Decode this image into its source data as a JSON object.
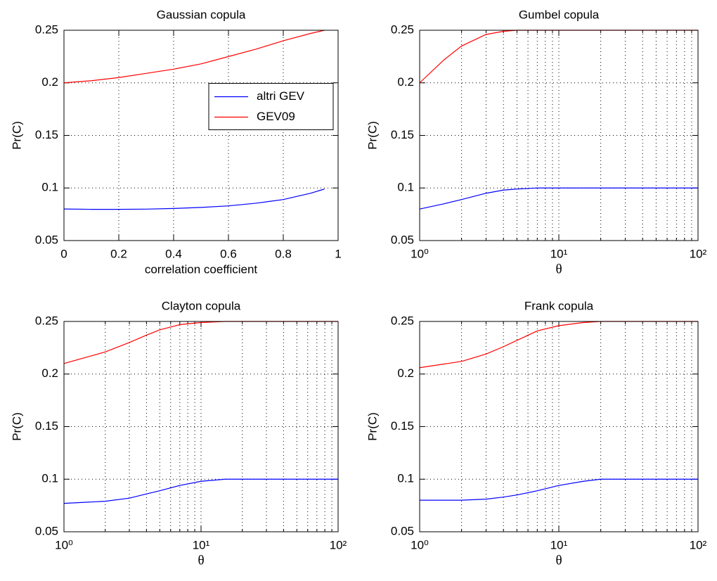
{
  "chart_data": [
    {
      "type": "line",
      "title": "Gaussian copula",
      "xlabel": "correlation coefficient",
      "ylabel": "Pr(C)",
      "x": [
        0,
        0.1,
        0.2,
        0.3,
        0.4,
        0.5,
        0.6,
        0.7,
        0.8,
        0.9,
        0.95
      ],
      "series": [
        {
          "name": "altri GEV",
          "color": "#0000ff",
          "values": [
            0.08,
            0.0797,
            0.0797,
            0.0799,
            0.0805,
            0.0815,
            0.083,
            0.0855,
            0.089,
            0.095,
            0.099
          ]
        },
        {
          "name": "GEV09",
          "color": "#ff0000",
          "values": [
            0.2,
            0.202,
            0.205,
            0.209,
            0.213,
            0.218,
            0.225,
            0.232,
            0.24,
            0.247,
            0.25
          ]
        }
      ],
      "xlim": [
        0,
        1
      ],
      "xticks": [
        0,
        0.2,
        0.4,
        0.6,
        0.8,
        1
      ],
      "ylim": [
        0.05,
        0.25
      ],
      "yticks": [
        0.05,
        0.1,
        0.15,
        0.2,
        0.25
      ],
      "grid": true,
      "legend": "center right"
    },
    {
      "type": "line",
      "title": "Gumbel copula",
      "xlabel": "θ",
      "ylabel": "Pr(C)",
      "xscale": "log",
      "x": [
        1,
        1.5,
        2,
        3,
        4,
        5,
        7,
        10,
        20,
        50,
        100
      ],
      "series": [
        {
          "color": "#0000ff",
          "values": [
            0.08,
            0.085,
            0.089,
            0.095,
            0.098,
            0.099,
            0.1,
            0.1,
            0.1,
            0.1,
            0.1
          ]
        },
        {
          "color": "#ff0000",
          "values": [
            0.2,
            0.222,
            0.235,
            0.246,
            0.249,
            0.25,
            0.25,
            0.25,
            0.25,
            0.25,
            0.25
          ]
        }
      ],
      "xlim": [
        1,
        100
      ],
      "xticks": [
        {
          "value": 1,
          "label": "10⁰"
        },
        {
          "value": 10,
          "label": "10¹"
        },
        {
          "value": 100,
          "label": "10²"
        }
      ],
      "ylim": [
        0.05,
        0.25
      ],
      "yticks": [
        0.05,
        0.1,
        0.15,
        0.2,
        0.25
      ],
      "grid": true,
      "minor_grid": true
    },
    {
      "type": "line",
      "title": "Clayton copula",
      "xlabel": "θ",
      "ylabel": "Pr(C)",
      "xscale": "log",
      "x": [
        1,
        2,
        3,
        4,
        5,
        7,
        10,
        15,
        20,
        50,
        100
      ],
      "series": [
        {
          "color": "#0000ff",
          "values": [
            0.077,
            0.079,
            0.082,
            0.086,
            0.089,
            0.094,
            0.098,
            0.1,
            0.1,
            0.1,
            0.1
          ]
        },
        {
          "color": "#ff0000",
          "values": [
            0.21,
            0.221,
            0.23,
            0.237,
            0.242,
            0.247,
            0.249,
            0.25,
            0.25,
            0.25,
            0.25
          ]
        }
      ],
      "xlim": [
        1,
        100
      ],
      "xticks": [
        {
          "value": 1,
          "label": "10⁰"
        },
        {
          "value": 10,
          "label": "10¹"
        },
        {
          "value": 100,
          "label": "10²"
        }
      ],
      "ylim": [
        0.05,
        0.25
      ],
      "yticks": [
        0.05,
        0.1,
        0.15,
        0.2,
        0.25
      ],
      "grid": true,
      "minor_grid": true
    },
    {
      "type": "line",
      "title": "Frank copula",
      "xlabel": "θ",
      "ylabel": "Pr(C)",
      "xscale": "log",
      "x": [
        1,
        2,
        3,
        4,
        5,
        7,
        10,
        15,
        20,
        50,
        100
      ],
      "series": [
        {
          "color": "#0000ff",
          "values": [
            0.08,
            0.08,
            0.081,
            0.083,
            0.085,
            0.089,
            0.094,
            0.098,
            0.1,
            0.1,
            0.1
          ]
        },
        {
          "color": "#ff0000",
          "values": [
            0.206,
            0.212,
            0.219,
            0.226,
            0.232,
            0.241,
            0.246,
            0.249,
            0.25,
            0.25,
            0.25
          ]
        }
      ],
      "xlim": [
        1,
        100
      ],
      "xticks": [
        {
          "value": 1,
          "label": "10⁰"
        },
        {
          "value": 10,
          "label": "10¹"
        },
        {
          "value": 100,
          "label": "10²"
        }
      ],
      "ylim": [
        0.05,
        0.25
      ],
      "yticks": [
        0.05,
        0.1,
        0.15,
        0.2,
        0.25
      ],
      "grid": true,
      "minor_grid": true
    }
  ]
}
